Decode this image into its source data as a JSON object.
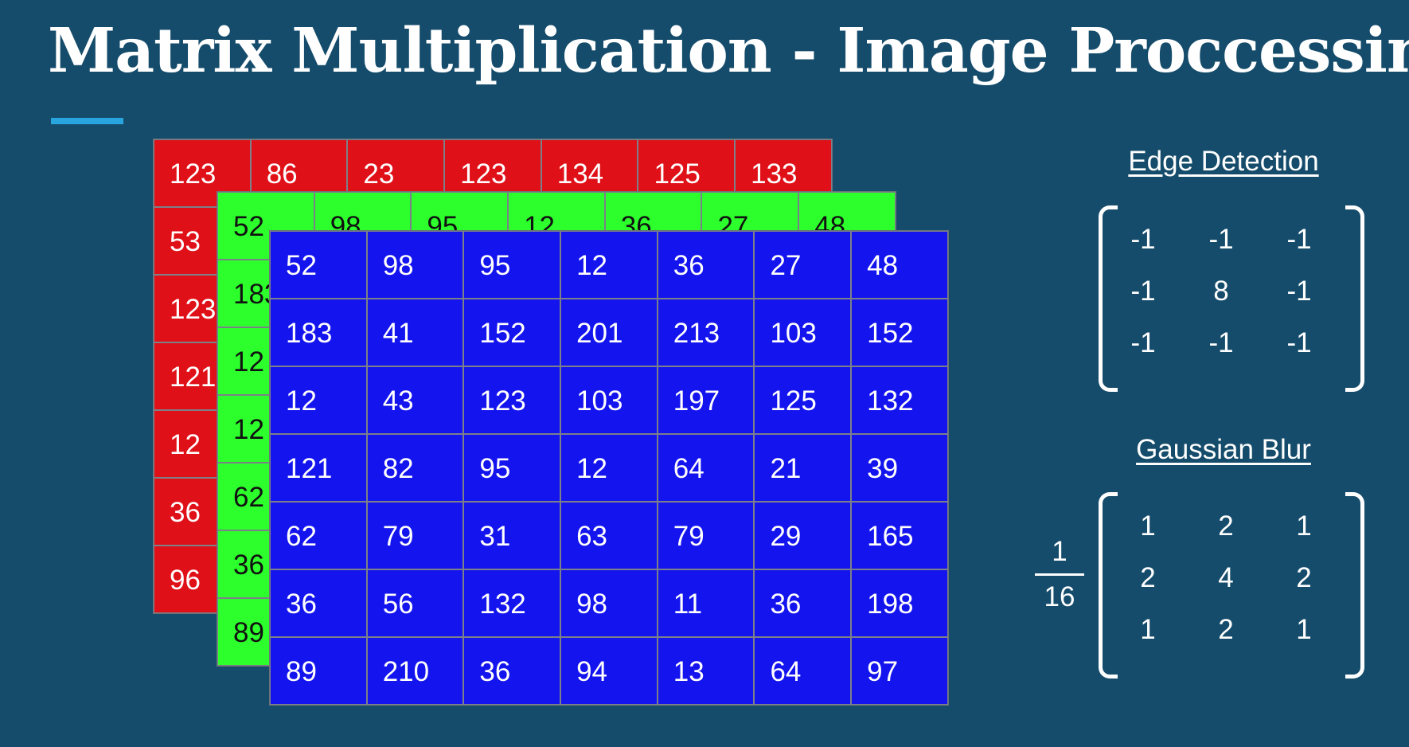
{
  "title": "Matrix Multiplication - Image Proccessing",
  "channels": {
    "red": [
      [
        "123",
        "86",
        "23",
        "123",
        "134",
        "125",
        "133"
      ],
      [
        "53",
        "",
        "",
        "",
        "",
        "",
        ""
      ],
      [
        "123",
        "",
        "",
        "",
        "",
        "",
        ""
      ],
      [
        "121",
        "",
        "",
        "",
        "",
        "",
        ""
      ],
      [
        "12",
        "",
        "",
        "",
        "",
        "",
        ""
      ],
      [
        "36",
        "",
        "",
        "",
        "",
        "",
        ""
      ],
      [
        "96",
        "",
        "",
        "",
        "",
        "",
        ""
      ]
    ],
    "green": [
      [
        "52",
        "98",
        "95",
        "12",
        "36",
        "27",
        "48"
      ],
      [
        "183",
        "",
        "",
        "",
        "",
        "",
        ""
      ],
      [
        "12",
        "",
        "",
        "",
        "",
        "",
        ""
      ],
      [
        "12",
        "",
        "",
        "",
        "",
        "",
        ""
      ],
      [
        "62",
        "",
        "",
        "",
        "",
        "",
        ""
      ],
      [
        "36",
        "",
        "",
        "",
        "",
        "",
        ""
      ],
      [
        "89",
        "",
        "",
        "",
        "",
        "",
        ""
      ]
    ],
    "blue": [
      [
        "52",
        "98",
        "95",
        "12",
        "36",
        "27",
        "48"
      ],
      [
        "183",
        "41",
        "152",
        "201",
        "213",
        "103",
        "152"
      ],
      [
        "12",
        "43",
        "123",
        "103",
        "197",
        "125",
        "132"
      ],
      [
        "121",
        "82",
        "95",
        "12",
        "64",
        "21",
        "39"
      ],
      [
        "62",
        "79",
        "31",
        "63",
        "79",
        "29",
        "165"
      ],
      [
        "36",
        "56",
        "132",
        "98",
        "11",
        "36",
        "198"
      ],
      [
        "89",
        "210",
        "36",
        "94",
        "13",
        "64",
        "97"
      ]
    ]
  },
  "kernels": {
    "edge_detection": {
      "title": "Edge Detection",
      "matrix": [
        [
          "-1",
          "-1",
          "-1"
        ],
        [
          "-1",
          "8",
          "-1"
        ],
        [
          "-1",
          "-1",
          "-1"
        ]
      ]
    },
    "gaussian_blur": {
      "title": "Gaussian Blur",
      "scale_numerator": "1",
      "scale_denominator": "16",
      "matrix": [
        [
          "1",
          "2",
          "1"
        ],
        [
          "2",
          "4",
          "2"
        ],
        [
          "1",
          "2",
          "1"
        ]
      ]
    }
  },
  "colors": {
    "background": "#154c6b",
    "accent": "#28a5de",
    "red_channel": "#e01018",
    "green_channel": "#2cff2c",
    "blue_channel": "#1414ee"
  }
}
